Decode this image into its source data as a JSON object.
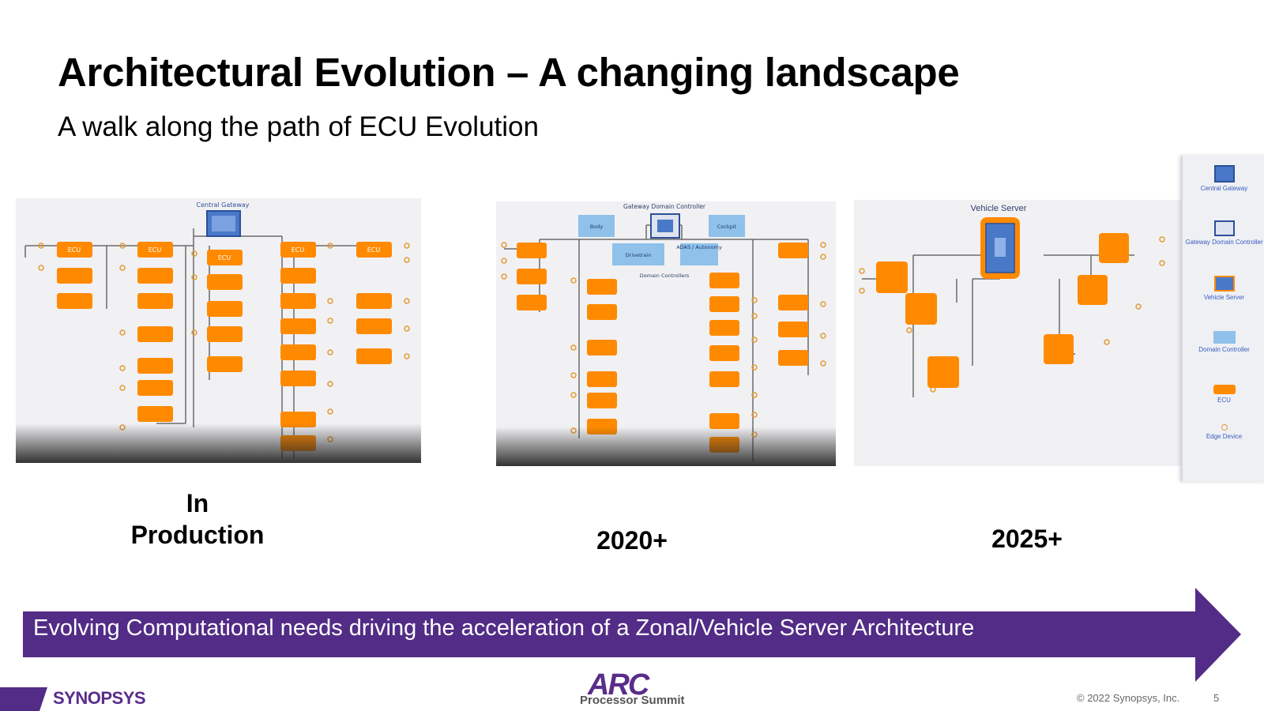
{
  "slide": {
    "title": "Architectural Evolution – A changing landscape",
    "subtitle": "A walk along the path of ECU Evolution"
  },
  "panels": {
    "production": {
      "label_line1": "In",
      "label_line2": "Production",
      "gateway_label": "Central Gateway",
      "ecu_label": "ECU"
    },
    "y2020": {
      "label": "2020+",
      "gateway_label": "Gateway Domain Controller",
      "domain_label": "Domain Controllers",
      "domains": [
        "Body",
        "Cockpit",
        "Drivetrain",
        "ADAS / Autonomy"
      ]
    },
    "y2025": {
      "label": "2025+",
      "server_label": "Vehicle Server"
    }
  },
  "legend": {
    "items": [
      {
        "label": "Central Gateway",
        "icon": "central-gateway-icon"
      },
      {
        "label": "Gateway Domain Controller",
        "icon": "gateway-domain-controller-icon"
      },
      {
        "label": "Vehicle Server",
        "icon": "vehicle-server-icon"
      },
      {
        "label": "Domain Controller",
        "icon": "domain-controller-icon"
      },
      {
        "label": "ECU",
        "icon": "ecu-icon"
      },
      {
        "label": "Edge Device",
        "icon": "edge-device-icon"
      }
    ]
  },
  "banner": {
    "text": "Evolving Computational needs driving the acceleration of a Zonal/Vehicle Server Architecture"
  },
  "footer": {
    "brand": "SYNOPSYS",
    "event_logo": "ARC",
    "event_name": "Processor Summit",
    "copyright": "© 2022 Synopsys, Inc.",
    "page_number": "5"
  },
  "colors": {
    "accent_purple": "#522c86",
    "ecu_orange": "#ff8a00",
    "domain_blue": "#8fc1ea",
    "wire_gray": "#6b6b6b"
  }
}
